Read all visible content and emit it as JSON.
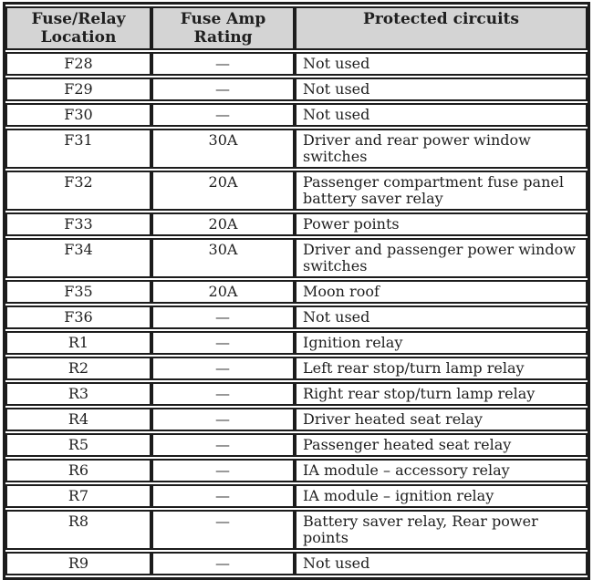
{
  "colors": {
    "header_bg": "#d4d4d4",
    "border": "#1c1c1c",
    "text": "#1f1f1f"
  },
  "table": {
    "headers": [
      "Fuse/Relay\nLocation",
      "Fuse Amp\nRating",
      "Protected circuits"
    ],
    "rows": [
      {
        "location": "F28",
        "rating": "—",
        "circuits": "Not used"
      },
      {
        "location": "F29",
        "rating": "—",
        "circuits": "Not used"
      },
      {
        "location": "F30",
        "rating": "—",
        "circuits": "Not used"
      },
      {
        "location": "F31",
        "rating": "30A",
        "circuits": "Driver and rear power window switches"
      },
      {
        "location": "F32",
        "rating": "20A",
        "circuits": "Passenger compartment fuse panel battery saver relay"
      },
      {
        "location": "F33",
        "rating": "20A",
        "circuits": "Power points"
      },
      {
        "location": "F34",
        "rating": "30A",
        "circuits": "Driver and passenger power window switches"
      },
      {
        "location": "F35",
        "rating": "20A",
        "circuits": "Moon roof"
      },
      {
        "location": "F36",
        "rating": "—",
        "circuits": "Not used"
      },
      {
        "location": "R1",
        "rating": "—",
        "circuits": "Ignition relay"
      },
      {
        "location": "R2",
        "rating": "—",
        "circuits": "Left rear stop/turn lamp relay"
      },
      {
        "location": "R3",
        "rating": "—",
        "circuits": "Right rear stop/turn lamp relay"
      },
      {
        "location": "R4",
        "rating": "—",
        "circuits": "Driver heated seat relay"
      },
      {
        "location": "R5",
        "rating": "—",
        "circuits": "Passenger heated seat relay"
      },
      {
        "location": "R6",
        "rating": "—",
        "circuits": "IA module – accessory relay"
      },
      {
        "location": "R7",
        "rating": "—",
        "circuits": "IA module – ignition relay"
      },
      {
        "location": "R8",
        "rating": "—",
        "circuits": "Battery saver relay, Rear power points"
      },
      {
        "location": "R9",
        "rating": "—",
        "circuits": "Not used"
      }
    ]
  }
}
